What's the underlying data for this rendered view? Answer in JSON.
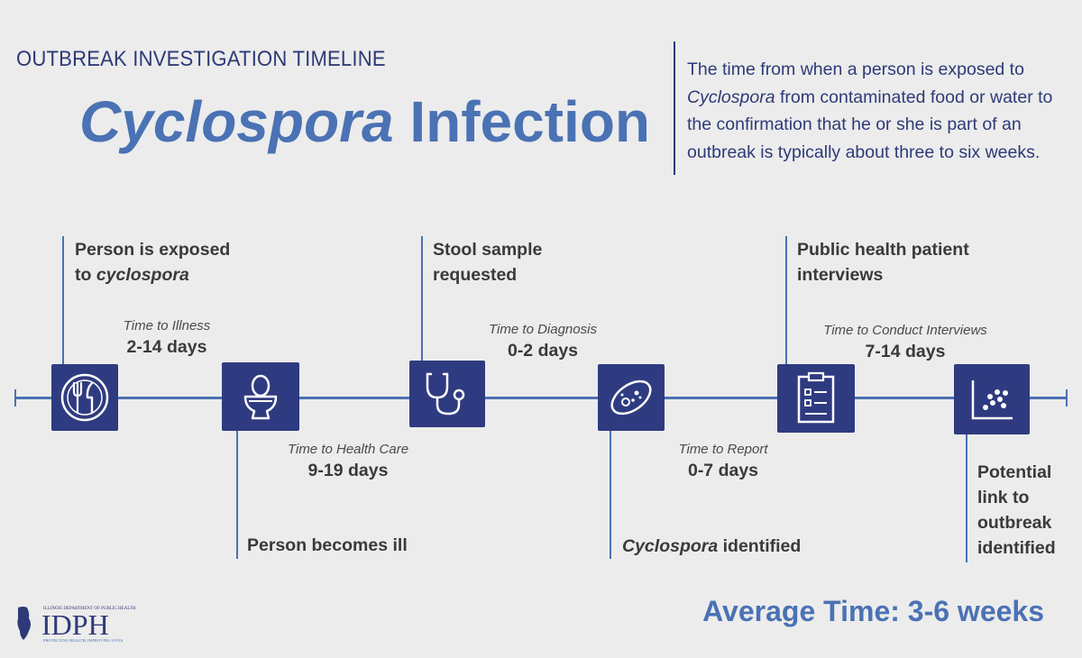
{
  "header": {
    "kicker": "OUTBREAK INVESTIGATION TIMELINE",
    "title_italic": "Cyclospora",
    "title_rest": " Infection"
  },
  "intro": {
    "italic": "Cyclospora",
    "before": "The time from when a person is exposed to ",
    "after": " from contaminated food or water to the confirmation that he or she is part of an outbreak is typically about three to six weeks."
  },
  "events": {
    "exposed_line1": "Person is exposed",
    "exposed_line2_prefix": "to ",
    "exposed_line2_italic": "cyclospora",
    "ill": "Person becomes ill",
    "stool_line1": "Stool sample",
    "stool_line2": "requested",
    "identified_italic": "Cyclospora",
    "identified_rest": " identified",
    "interviews_line1": "Public health patient",
    "interviews_line2": "interviews",
    "link_line1": "Potential",
    "link_line2": "link to",
    "link_line3": "outbreak",
    "link_line4": "identified"
  },
  "durations": {
    "illness": {
      "label": "Time to Illness",
      "value": "2-14 days"
    },
    "health_care": {
      "label": "Time to Health Care",
      "value": "9-19 days"
    },
    "diagnosis": {
      "label": "Time to Diagnosis",
      "value": "0-2 days"
    },
    "report": {
      "label": "Time to Report",
      "value": "0-7 days"
    },
    "interviews": {
      "label": "Time to Conduct Interviews",
      "value": "7-14 days"
    }
  },
  "icons": [
    "plate-fork-knife-icon",
    "toilet-icon",
    "stethoscope-icon",
    "microbe-icon",
    "clipboard-checklist-icon",
    "scatter-plot-icon"
  ],
  "footer": {
    "average": "Average Time: 3-6 weeks",
    "logo_text": "IDPH",
    "logo_top": "ILLINOIS DEPARTMENT OF PUBLIC HEALTH",
    "logo_bottom": "PROTECTING HEALTH, IMPROVING LIVES"
  },
  "colors": {
    "navy": "#2f3b80",
    "accent": "#4a72b4",
    "background": "#ececec"
  }
}
